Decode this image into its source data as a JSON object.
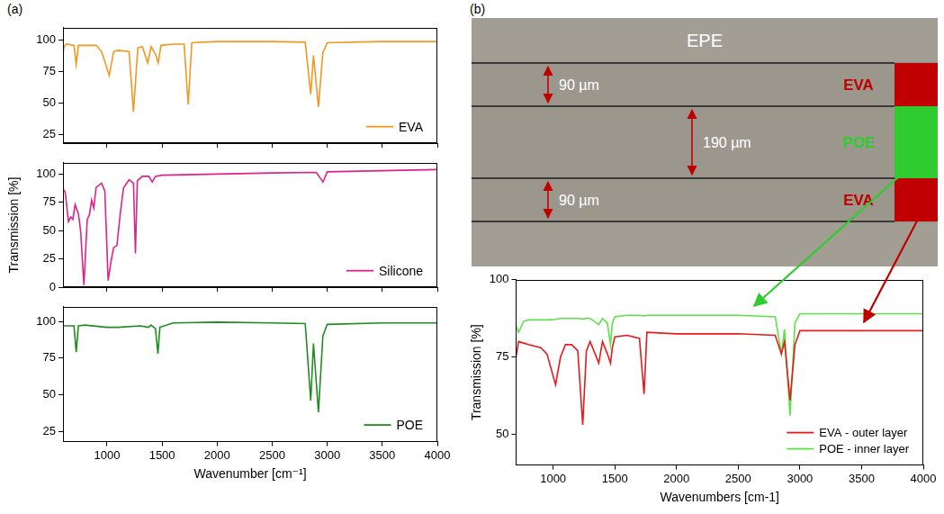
{
  "panel_labels": [
    "(a)",
    "(b)"
  ],
  "chart_data": [
    {
      "type": "line",
      "x": [
        600,
        610,
        630,
        700,
        720,
        740,
        800,
        900,
        950,
        1020,
        1060,
        1100,
        1200,
        1240,
        1280,
        1320,
        1370,
        1400,
        1440,
        1465,
        1490,
        1600,
        1700,
        1737,
        1770,
        2000,
        2500,
        2800,
        2850,
        2875,
        2920,
        2960,
        3000,
        3500,
        4000
      ],
      "series": [
        {
          "name": "EVA",
          "color": "#f5961e",
          "values": [
            88,
            95,
            97,
            96,
            81,
            96,
            96,
            96,
            91,
            72,
            91,
            92,
            91,
            43,
            94,
            95,
            82,
            95,
            89,
            82,
            96,
            97,
            97,
            49,
            98,
            99,
            99,
            98.5,
            57,
            88,
            47,
            90,
            98,
            99,
            99
          ]
        }
      ],
      "xlim": [
        600,
        4000
      ],
      "xticks": [
        1000,
        1500,
        2000,
        2500,
        3000,
        3500,
        4000
      ],
      "ylim": [
        18,
        110
      ],
      "yticks": [
        25,
        50,
        75,
        100
      ],
      "grid": false,
      "legend": "lower right",
      "tick_labels": "y"
    },
    {
      "type": "line",
      "x": [
        600,
        620,
        650,
        670,
        690,
        710,
        740,
        760,
        790,
        820,
        840,
        860,
        880,
        900,
        950,
        980,
        1010,
        1040,
        1060,
        1090,
        1120,
        1150,
        1200,
        1240,
        1258,
        1275,
        1320,
        1380,
        1410,
        1440,
        1500,
        2000,
        2500,
        2900,
        2962,
        3000,
        3500,
        4000
      ],
      "series": [
        {
          "name": "Silicone",
          "color": "#e0218a",
          "values": [
            87,
            84,
            58,
            62,
            60,
            73,
            65,
            50,
            2,
            60,
            64,
            77,
            70,
            88,
            92,
            85,
            6,
            25,
            35,
            37,
            65,
            88,
            95,
            92,
            30,
            94,
            98,
            98,
            93,
            98,
            99,
            100,
            101,
            101.5,
            93,
            102,
            103,
            104
          ]
        }
      ],
      "xlim": [
        600,
        4000
      ],
      "xticks": [
        1000,
        1500,
        2000,
        2500,
        3000,
        3500,
        4000
      ],
      "ylim": [
        0,
        110
      ],
      "yticks": [
        0,
        25,
        50,
        75,
        100
      ],
      "y_label": "Transmission [%]",
      "grid": false,
      "legend": "lower right",
      "tick_labels": "y"
    },
    {
      "type": "line",
      "x": [
        600,
        700,
        720,
        740,
        800,
        1000,
        1100,
        1300,
        1377,
        1400,
        1440,
        1462,
        1480,
        1600,
        2000,
        2500,
        2800,
        2850,
        2875,
        2920,
        2960,
        3000,
        3500,
        4000
      ],
      "series": [
        {
          "name": "POE",
          "color": "#1e8c1e",
          "values": [
            97,
            97,
            79,
            97,
            97.5,
            96,
            96,
            97,
            96,
            97.5,
            95,
            78,
            96,
            99,
            99.5,
            99,
            98.5,
            46,
            85,
            38,
            90,
            98,
            99,
            99
          ]
        }
      ],
      "xlim": [
        600,
        4000
      ],
      "xticks": [
        1000,
        1500,
        2000,
        2500,
        3000,
        3500,
        4000
      ],
      "ylim": [
        18,
        110
      ],
      "yticks": [
        25,
        50,
        75,
        100
      ],
      "x_label": "Wavenumber [cm⁻¹]",
      "grid": false,
      "legend": "lower right"
    },
    {
      "type": "line",
      "x": [
        700,
        720,
        760,
        800,
        900,
        950,
        1020,
        1060,
        1100,
        1150,
        1200,
        1240,
        1270,
        1300,
        1370,
        1400,
        1440,
        1465,
        1480,
        1500,
        1600,
        1700,
        1737,
        1760,
        2000,
        2500,
        2800,
        2850,
        2875,
        2920,
        2960,
        3000,
        3500,
        4000
      ],
      "series": [
        {
          "name": "EVA - outer layer",
          "color": "#e41a1c",
          "values": [
            75,
            80,
            79.5,
            79,
            78,
            76,
            66,
            75,
            79,
            79,
            77,
            53,
            77,
            80,
            73,
            80,
            76,
            73,
            78,
            81.5,
            82,
            81,
            63,
            83,
            82.5,
            82.5,
            82,
            76,
            80,
            61,
            79,
            83.5,
            83.5,
            83.5
          ]
        },
        {
          "name": "POE - inner layer",
          "color": "#5ee04a",
          "values": [
            85,
            83,
            86.5,
            87,
            87,
            87,
            87.2,
            87.5,
            87.5,
            87.5,
            87.5,
            87.3,
            87.5,
            87.5,
            85.5,
            87.5,
            86,
            79,
            86,
            88,
            88.5,
            88.5,
            88.3,
            88.5,
            88.5,
            88.5,
            88,
            76,
            84,
            56,
            86,
            89,
            89,
            89
          ]
        }
      ],
      "xlim": [
        700,
        4000
      ],
      "xticks": [
        1000,
        1500,
        2000,
        2500,
        3000,
        3500,
        4000
      ],
      "ylim": [
        40,
        100
      ],
      "yticks": [
        50,
        75,
        100
      ],
      "x_label": "Wavenumbers [cm-1]",
      "y_label": "Transmission [%]",
      "grid": false,
      "legend": "lower right"
    }
  ],
  "micrograph": {
    "title": "EPE",
    "layers": [
      {
        "name": "EVA",
        "thickness": "90 µm",
        "color": "#c00000"
      },
      {
        "name": "POE",
        "thickness": "190 µm",
        "color": "#2ecc2e"
      },
      {
        "name": "EVA",
        "thickness": "90 µm",
        "color": "#c00000"
      }
    ]
  }
}
